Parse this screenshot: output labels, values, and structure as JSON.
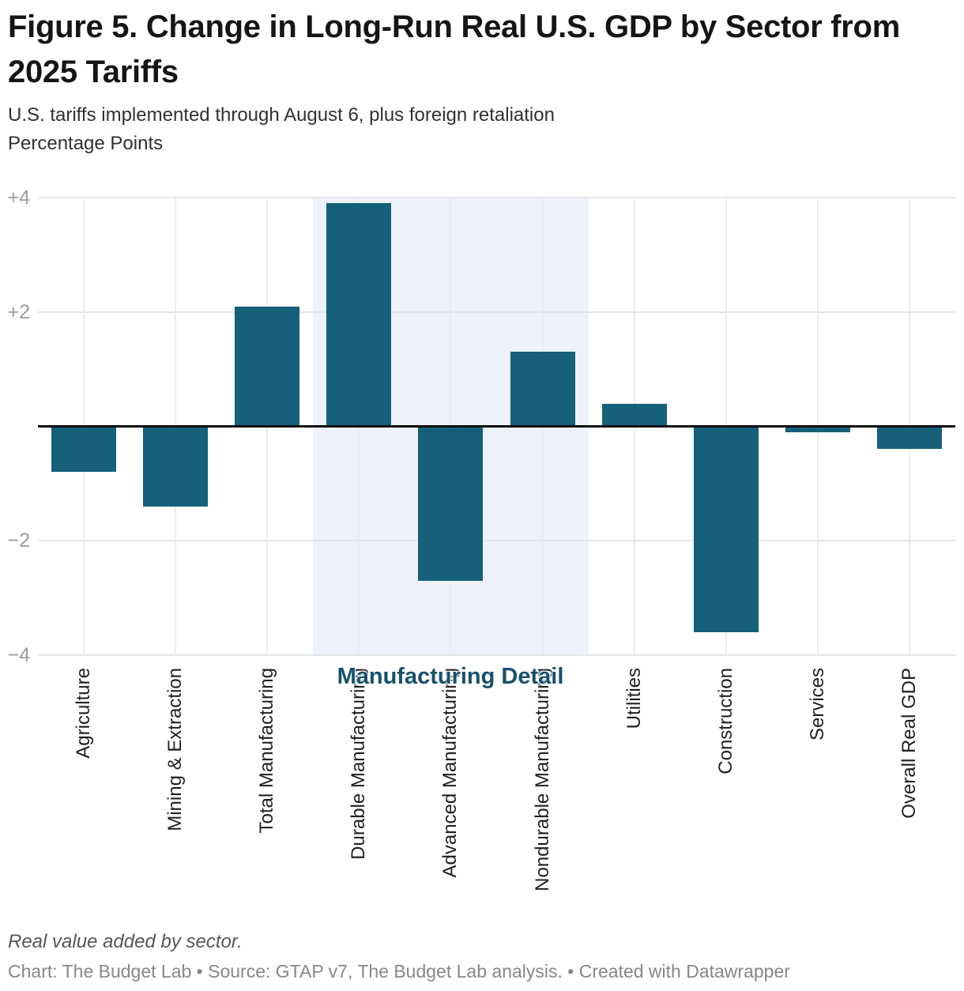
{
  "header": {
    "title": "Figure 5. Change in Long-Run Real U.S. GDP by Sector from 2025 Tariffs",
    "subtitle_line1": "U.S. tariffs implemented through August 6, plus foreign retaliation",
    "subtitle_line2": "Percentage Points"
  },
  "chart_data": {
    "type": "bar",
    "title": "Figure 5. Change in Long-Run Real U.S. GDP by Sector from 2025 Tariffs",
    "xlabel": "",
    "ylabel": "Percentage Points",
    "categories": [
      "Agriculture",
      "Mining & Extraction",
      "Total Manufacturing",
      "Durable Manufacturing",
      "Advanced Manufacturing",
      "Nondurable Manufacturing",
      "Utilities",
      "Construction",
      "Services",
      "Overall Real GDP"
    ],
    "values": [
      -0.8,
      -1.4,
      2.1,
      3.9,
      -2.7,
      1.3,
      0.4,
      -3.6,
      -0.1,
      -0.4
    ],
    "ylim": [
      -4,
      4
    ],
    "yticks": [
      4,
      2,
      -2,
      -4
    ],
    "ytick_labels": [
      "+4",
      "+2",
      "−2",
      "−4"
    ],
    "grid": true,
    "legend": "none",
    "bar_color": "#16607a",
    "highlight_region": {
      "label": "Manufacturing Detail",
      "categories": [
        "Durable Manufacturing",
        "Advanced Manufacturing",
        "Nondurable Manufacturing"
      ],
      "start_index": 3,
      "end_index": 5,
      "color": "#edf2fc",
      "label_color": "#17506c"
    }
  },
  "footer": {
    "note": "Real value added by sector.",
    "credit": "Chart: The Budget Lab • Source: GTAP v7, The Budget Lab analysis. • Created with Datawrapper"
  }
}
